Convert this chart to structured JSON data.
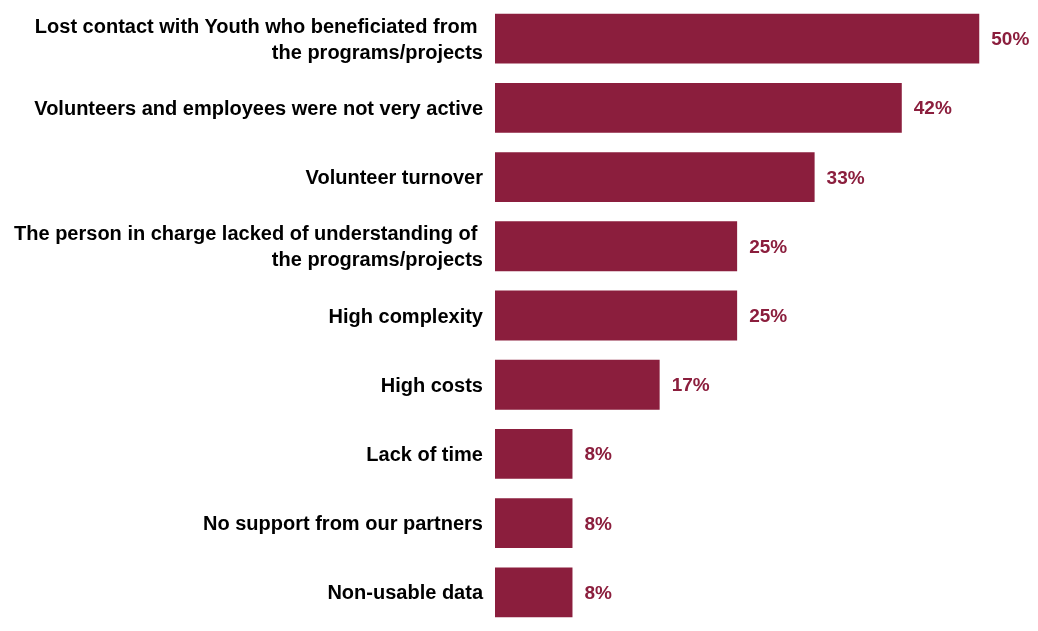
{
  "chart_data": {
    "type": "bar",
    "orientation": "horizontal",
    "categories": [
      "Lost contact with Youth who beneficiated from the programs/projects",
      "Volunteers and employees were not very active",
      "Volunteer turnover",
      "The person in charge lacked of understanding of the programs/projects",
      "High complexity",
      "High costs",
      "Lack of time",
      "No support from our partners",
      "Non-usable data"
    ],
    "values": [
      50,
      42,
      33,
      25,
      25,
      17,
      8,
      8,
      8
    ],
    "value_labels": [
      "50%",
      "42%",
      "33%",
      "25%",
      "25%",
      "17%",
      "8%",
      "8%",
      "8%"
    ],
    "color": "#8b1e3d"
  }
}
